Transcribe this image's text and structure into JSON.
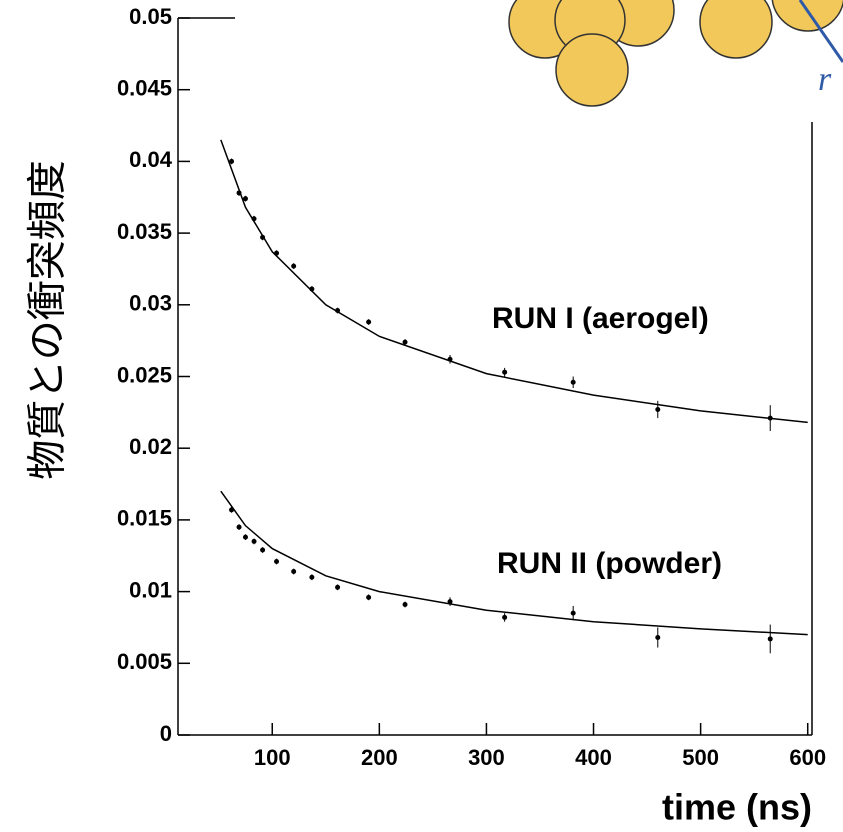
{
  "chart_data": {
    "type": "scatter",
    "y_label": "物質との衝突頻度",
    "x_label": "time (ns)",
    "xlim": [
      12,
      604
    ],
    "ylim": [
      0,
      0.05
    ],
    "xticks": [
      100,
      200,
      300,
      400,
      500,
      600
    ],
    "yticks": [
      0,
      0.005,
      0.01,
      0.015,
      0.02,
      0.025,
      0.03,
      0.035,
      0.04,
      0.045,
      0.05
    ],
    "annotation": "r",
    "series": [
      {
        "name": "RUN I (aerogel)",
        "color": "#000000",
        "x": [
          62,
          69,
          75,
          83,
          91,
          104,
          120,
          137,
          161,
          190,
          224,
          266,
          317,
          381,
          460,
          565
        ],
        "values": [
          0.04,
          0.0378,
          0.0374,
          0.036,
          0.0347,
          0.0336,
          0.0327,
          0.0311,
          0.0296,
          0.0288,
          0.0274,
          0.0262,
          0.0253,
          0.0246,
          0.0227,
          0.0221
        ],
        "errors": [
          0.0002,
          0.0002,
          0.0002,
          0.0002,
          0.0002,
          0.0002,
          0.0002,
          0.0002,
          0.0002,
          0.0002,
          0.0002,
          0.0003,
          0.0003,
          0.0004,
          0.0006,
          0.0009
        ],
        "fit": {
          "x": [
            52,
            75,
            100,
            150,
            200,
            300,
            400,
            500,
            600
          ],
          "values": [
            0.0415,
            0.0368,
            0.0337,
            0.03,
            0.0278,
            0.0252,
            0.0237,
            0.0226,
            0.0218
          ]
        }
      },
      {
        "name": "RUN II (powder)",
        "color": "#000000",
        "x": [
          62,
          69,
          75,
          83,
          91,
          104,
          120,
          137,
          161,
          190,
          224,
          266,
          317,
          381,
          460,
          565
        ],
        "values": [
          0.0157,
          0.0145,
          0.0138,
          0.0135,
          0.0129,
          0.0121,
          0.0114,
          0.011,
          0.0103,
          0.0096,
          0.0091,
          0.0093,
          0.0082,
          0.0085,
          0.0068,
          0.0067
        ],
        "errors": [
          0.0002,
          0.0002,
          0.0002,
          0.0002,
          0.0002,
          0.0002,
          0.0002,
          0.0002,
          0.0002,
          0.0002,
          0.0002,
          0.0003,
          0.0003,
          0.0005,
          0.0007,
          0.001
        ],
        "fit": {
          "x": [
            52,
            75,
            100,
            150,
            200,
            300,
            400,
            500,
            600
          ],
          "values": [
            0.017,
            0.0146,
            0.013,
            0.0111,
            0.01,
            0.0087,
            0.0079,
            0.0074,
            0.007
          ]
        }
      }
    ]
  }
}
